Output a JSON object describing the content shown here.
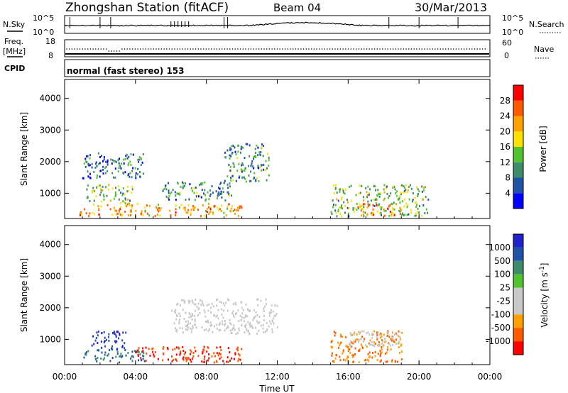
{
  "header": {
    "station": "Zhongshan Station (fitACF)",
    "beam": "Beam 04",
    "date": "30/Mar/2013"
  },
  "top_panels": {
    "nsky_label": "N.Sky",
    "nsearch_label": "N.Search",
    "nsky_ticks": [
      "10^5",
      "10^0"
    ],
    "nsearch_ticks": [
      "10^5",
      "10^0"
    ],
    "freq_label": "Freq.",
    "freq_unit": "[MHz]",
    "freq_ticks": [
      "18",
      "8"
    ],
    "nave_label": "Nave",
    "nave_ticks": [
      "60",
      "0"
    ],
    "cpid_label": "CPID",
    "cpid_value": "normal (fast stereo) 153"
  },
  "colors": {
    "power": [
      "#0000ff",
      "#2052a8",
      "#3e8c6b",
      "#50c32f",
      "#ffe000",
      "#ffa200",
      "#ff5a00",
      "#ff0000"
    ],
    "velocity": [
      "#ff0000",
      "#ff5a00",
      "#ffa000",
      "#c8c8c8",
      "#c8c8c8",
      "#50c32f",
      "#3e8c6b",
      "#2052a8",
      "#2222cc"
    ],
    "ground_scatter": "#c8c8c8"
  },
  "chart_data": [
    {
      "type": "heatmap",
      "title": "",
      "xlabel": "Time UT",
      "ylabel": "Slant Range [km]",
      "x_ticks": [
        "00:00",
        "04:00",
        "08:00",
        "12:00",
        "16:00",
        "20:00",
        "00:00"
      ],
      "y_ticks": [
        1000,
        2000,
        3000,
        4000
      ],
      "xlim": [
        0,
        24
      ],
      "ylim": [
        200,
        4600
      ],
      "colorbar": {
        "label": "Power [dB]",
        "range": [
          0,
          32
        ],
        "ticks": [
          4,
          8,
          12,
          16,
          20,
          24,
          28
        ]
      },
      "scatter_regions_approx": [
        {
          "t_start": 0.8,
          "t_end": 10.0,
          "range_km": [
            300,
            700
          ],
          "power_db": 22
        },
        {
          "t_start": 1.2,
          "t_end": 3.8,
          "range_km": [
            700,
            1300
          ],
          "power_db": 14
        },
        {
          "t_start": 1.0,
          "t_end": 4.5,
          "range_km": [
            1500,
            2300
          ],
          "power_db": 8
        },
        {
          "t_start": 5.5,
          "t_end": 9.5,
          "range_km": [
            800,
            1400
          ],
          "power_db": 10
        },
        {
          "t_start": 9.0,
          "t_end": 11.5,
          "range_km": [
            1400,
            2600
          ],
          "power_db": 10
        },
        {
          "t_start": 15.0,
          "t_end": 20.5,
          "range_km": [
            300,
            1300
          ],
          "power_db": 14
        },
        {
          "t_start": 16.5,
          "t_end": 19.0,
          "range_km": [
            300,
            700
          ],
          "power_db": 22
        }
      ]
    },
    {
      "type": "heatmap",
      "title": "",
      "xlabel": "Time UT",
      "ylabel": "Slant Range [km]",
      "x_ticks": [
        "00:00",
        "04:00",
        "08:00",
        "12:00",
        "16:00",
        "20:00",
        "00:00"
      ],
      "y_ticks": [
        1000,
        2000,
        3000,
        4000
      ],
      "xlim": [
        0,
        24
      ],
      "ylim": [
        200,
        4600
      ],
      "colorbar": {
        "label": "Velocity [m s^-1]",
        "tick_labels": [
          "1000",
          "500",
          "100",
          "25",
          "-25",
          "-100",
          "-500",
          "-1000"
        ]
      },
      "scatter_regions_approx": [
        {
          "t_start": 0.8,
          "t_end": 4.5,
          "range_km": [
            300,
            700
          ],
          "velocity": 100
        },
        {
          "t_start": 1.5,
          "t_end": 3.5,
          "range_km": [
            700,
            1300
          ],
          "velocity": 500
        },
        {
          "t_start": 4.0,
          "t_end": 10.0,
          "range_km": [
            300,
            800
          ],
          "velocity": -500
        },
        {
          "t_start": 6.0,
          "t_end": 12.0,
          "range_km": [
            1200,
            2300
          ],
          "velocity": 0
        },
        {
          "t_start": 15.0,
          "t_end": 19.0,
          "range_km": [
            300,
            1300
          ],
          "velocity": -100
        },
        {
          "t_start": 16.0,
          "t_end": 19.0,
          "range_km": [
            800,
            1300
          ],
          "velocity": 0
        }
      ]
    }
  ]
}
